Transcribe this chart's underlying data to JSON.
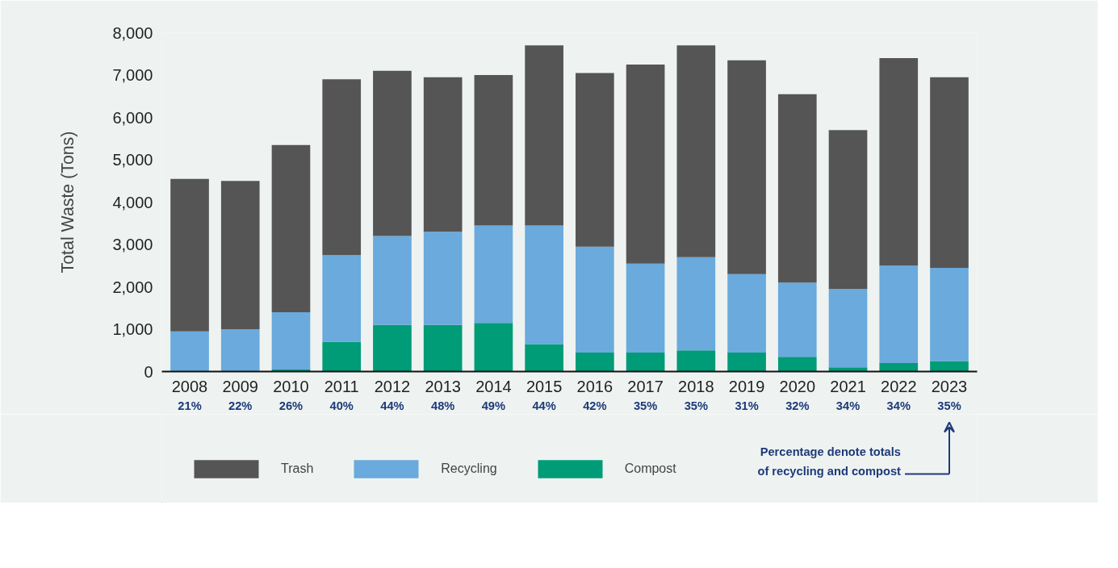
{
  "chart_data": {
    "type": "bar",
    "stacked": true,
    "ylabel": "Total Waste (Tons)",
    "categories": [
      "2008",
      "2009",
      "2010",
      "2011",
      "2012",
      "2013",
      "2014",
      "2015",
      "2016",
      "2017",
      "2018",
      "2019",
      "2020",
      "2021",
      "2022",
      "2023"
    ],
    "series": [
      {
        "name": "Compost",
        "color": "#009b77",
        "values": [
          null,
          null,
          50,
          700,
          1100,
          1100,
          1150,
          650,
          450,
          450,
          500,
          450,
          350,
          100,
          200,
          250
        ]
      },
      {
        "name": "Recycling",
        "color": "#6aaadd",
        "values": [
          950,
          1000,
          1350,
          2050,
          2100,
          2200,
          2300,
          2800,
          2500,
          2100,
          2200,
          1850,
          1750,
          1850,
          2300,
          2200
        ]
      },
      {
        "name": "Trash",
        "color": "#555555",
        "values": [
          3600,
          3500,
          3950,
          4150,
          3900,
          3650,
          3550,
          4250,
          4100,
          4700,
          5000,
          5050,
          4450,
          3750,
          4900,
          4500
        ]
      }
    ],
    "ylim": [
      0,
      8000
    ],
    "yticks": [
      0,
      {
        "value": 1000,
        "label": "1,000"
      },
      {
        "value": 2000,
        "label": "2,000"
      },
      {
        "value": 3000,
        "label": "3,000"
      },
      {
        "value": 4000,
        "label": "4,000"
      },
      {
        "value": 5000,
        "label": "5,000"
      },
      {
        "value": 6000,
        "label": "6,000"
      },
      {
        "value": 7000,
        "label": "7,000"
      },
      {
        "value": 8000,
        "label": "8,000"
      }
    ],
    "legend": "bottom",
    "grid": false,
    "annotations": [
      "21%",
      "22%",
      "26%",
      "40%",
      "44%",
      "48%",
      "49%",
      "44%",
      "42%",
      "35%",
      "35%",
      "31%",
      "32%",
      "34%",
      "34%",
      "35%",
      "Percentage denote totals\nof recycling and compost"
    ]
  }
}
